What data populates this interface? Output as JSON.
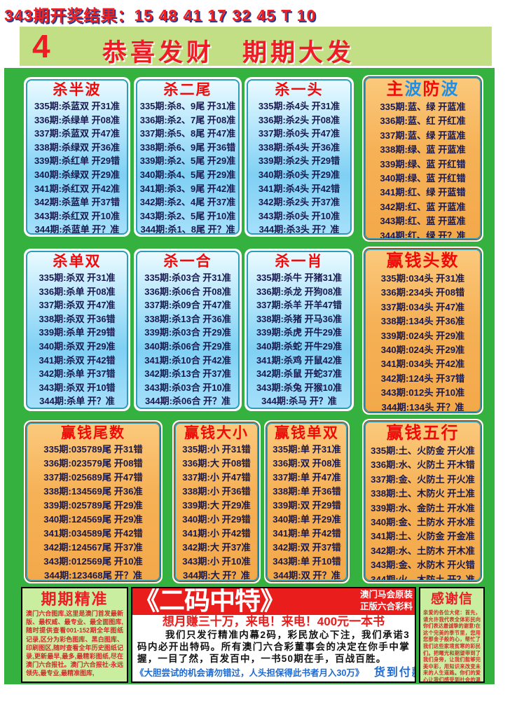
{
  "colors": {
    "page_green": "#35b13f",
    "banner_green": "#c3df85",
    "panel_blue": "#7fd0f4",
    "panel_orange": "#f6b156",
    "accent_red": "#ee1c25",
    "row_text_navy": "#18184f",
    "promo_blue": "#1e6ad1"
  },
  "header": {
    "result_line": "343期开奖结果：15 48 41 17 32 45 T 10",
    "issue_number": "4",
    "banner_title": "恭喜发财　期期大发"
  },
  "panels": [
    {
      "title": "杀半波",
      "rows": [
        "335期:杀蓝双 开31准",
        "336期:杀绿单 开08准",
        "337期:杀蓝双 开47准",
        "338期:杀绿双 开36准",
        "339期:杀红单 开29错",
        "340期:杀绿双 开29准",
        "341期:杀红双 开42准",
        "342期:杀蓝单 开37错",
        "343期:杀红双 开10准",
        "344期:杀蓝单 开？准"
      ]
    },
    {
      "title": "杀二尾",
      "rows": [
        "335期:杀8、9尾 开31准",
        "336期:杀2、7尾 开08准",
        "337期:杀5、8尾 开47准",
        "338期:杀6、9尾 开36错",
        "339期:杀2、5尾 开29准",
        "340期:杀4、5尾 开29准",
        "341期:杀3、9尾 开42准",
        "342期:杀2、4尾 开37准",
        "343期:杀2、5尾 开10准",
        "344期:杀1、8尾 开？准"
      ]
    },
    {
      "title": "杀一头",
      "rows": [
        "335期:杀4头 开31准",
        "336期:杀2头 开08准",
        "337期:杀0头 开47准",
        "338期:杀4头 开36准",
        "339期:杀2头 开29错",
        "340期:杀0头 开29准",
        "341期:杀4头 开42错",
        "342期:杀2头 开37准",
        "343期:杀0头 开10准",
        "344期:杀3头 开？准"
      ]
    },
    {
      "title": "主波防波",
      "title_chars": [
        "主",
        "波",
        "防",
        "波"
      ],
      "rows": [
        "335期:蓝、绿 开蓝准",
        "336期:蓝、红 开红准",
        "337期:蓝、绿 开蓝准",
        "338期:绿、蓝 开蓝准",
        "339期:绿、蓝 开红错",
        "340期:绿、蓝 开红错",
        "341期:红、绿 开蓝错",
        "342期:红、蓝 开蓝准",
        "343期:红、蓝 开蓝准",
        "344期:红、绿 开？准"
      ]
    },
    {
      "title": "杀单双",
      "rows": [
        "335期:杀双 开31准",
        "336期:杀单 开08准",
        "337期:杀双 开47准",
        "338期:杀双 开36错",
        "339期:杀单 开29错",
        "340期:杀双 开29准",
        "341期:杀双 开42错",
        "342期:杀单 开37错",
        "343期:杀双 开10错",
        "344期:杀单 开？准"
      ]
    },
    {
      "title": "杀一合",
      "rows": [
        "335期:杀03合 开31准",
        "336期:杀06合 开08准",
        "337期:杀09合 开47准",
        "338期:杀13合 开36准",
        "339期:杀03合 开29准",
        "340期:杀06合 开29准",
        "341期:杀10合 开42准",
        "342期:杀13合 开37准",
        "343期:杀03合 开10准",
        "344期:杀06合 开？准"
      ]
    },
    {
      "title": "杀一肖",
      "rows": [
        "335期:杀牛 开猪31准",
        "336期:杀龙 开狗08准",
        "337期:杀羊 开羊47错",
        "338期:杀猪 开马36准",
        "339期:杀虎 开牛29准",
        "340期:杀蛇 开牛29准",
        "341期:杀鸡 开鼠42准",
        "342期:杀鼠 开蛇37准",
        "343期:杀兔 开猴10准",
        "344期:杀马 开？准"
      ]
    },
    {
      "title": "赢钱头数",
      "rows": [
        "335期:034头 开31准",
        "336期:234头 开08错",
        "337期:034头 开47准",
        "338期:134头 开36准",
        "339期:024头 开29准",
        "340期:024头 开29准",
        "341期:034头 开42准",
        "342期:124头 开37错",
        "343期:012头 开10准",
        "344期:134头 开？准"
      ]
    },
    {
      "title": "赢钱尾数",
      "rows": [
        "335期:035789尾 开31错",
        "336期:023579尾 开08错",
        "337期:025689尾 开47错",
        "338期:134569尾 开36准",
        "339期:025789尾 开29准",
        "340期:124569尾 开29准",
        "341期:034589尾 开42错",
        "342期:124567尾 开37准",
        "343期:012569尾 开10准",
        "344期:123468尾 开？准"
      ]
    },
    {
      "title": "赢钱大小",
      "rows": [
        "335期:小 开31错",
        "336期:大 开08错",
        "337期:小 开47错",
        "338期:小 开36错",
        "339期:大 开29准",
        "340期:小 开29错",
        "341期:小 开42错",
        "342期:大 开37准",
        "343期:小 开10准",
        "344期:大 开？准"
      ]
    },
    {
      "title": "赢钱单双",
      "rows": [
        "335期:单 开31准",
        "336期:双 开08准",
        "337期:单 开47准",
        "338期:单 开36错",
        "339期:双 开29错",
        "340期:单 开29准",
        "341期:单 开42错",
        "342期:双 开37错",
        "343期:单 开10错",
        "344期:双 开？准"
      ]
    },
    {
      "title": "赢钱五行",
      "rows": [
        "335期:土、火防金 开火准",
        "336期:水、火防土 开木错",
        "337期:金、火防土 开火准",
        "338期:土、木防火 开土准",
        "339期:水、金防土 开水准",
        "340期:金、土防水 开水准",
        "341期:土、火防金 开金准",
        "342期:水、土防木 开木准",
        "343期:金、水防木 开火错",
        "344期:火、木防土 开？准"
      ]
    }
  ],
  "bottom": {
    "left": {
      "title": "期期精准",
      "body": "澳门六合图库,这里是澳门首发最新版、最权威、最专业、最全面图库,随时提供查看001-152期全年图纸记录,区分为彩色图库、黑白图库、印刷图区,随时查看全年历史图纸记录,更新最早,最多,最精彩图纸,尽在澳门六合报社。澳门六合报社-永远领先,最专业,最精准图库,"
    },
    "middle": {
      "title": "《二码中特》",
      "side_note_1": "澳门马会原装",
      "side_note_2": "正版六合彩料",
      "hotline": "想月赚三十万，来电！来电！400元一本书",
      "body": "我们只发行精准内幕2码，彩民放心下注，我们承诺3码内必开出特码。所有澳门六合彩董事会的决定在你手中掌握，一目了然，百发百中，一书50期在手，百战百胜。",
      "promise": "《大胆尝试的机会请勿错过，人头担保得此书者月入30万》",
      "payment": "货到付款"
    },
    "right": {
      "title": "感谢信",
      "body": "亲爱的各位大佬：首先，请允许我代表全体彩民向你们表达最诚挚的谢意!在这个完美的季节里，您用您那金子般的心，帮忙了我们这些家境贫寒的彩民们。把曙光和期望带到了我们身旁，让我们能够完美中彩，用知识来改变未来的人生道路。你们的爱心让我们感受到社会的温暖，你们的好彩免除了我们贫困的后顾之忧，让我们渴望新生活的心倍受感"
    }
  }
}
